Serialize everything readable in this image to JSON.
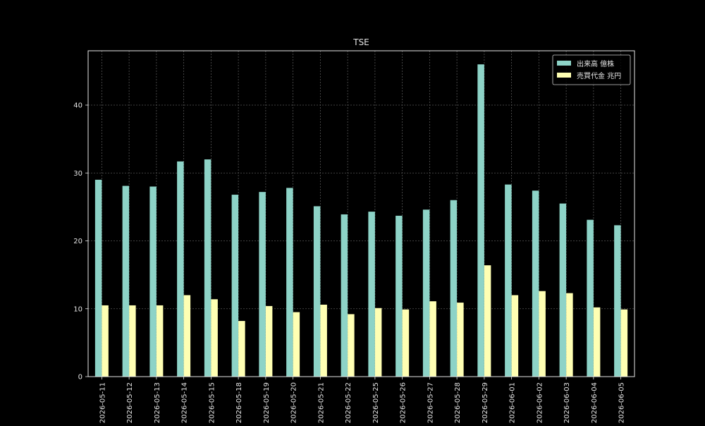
{
  "chart_data": {
    "type": "bar",
    "title": "TSE",
    "xlabel": "",
    "ylabel": "",
    "ylim": [
      0,
      48
    ],
    "yticks": [
      0,
      10,
      20,
      30,
      40
    ],
    "grid": true,
    "legend_position": "top-right",
    "categories": [
      "2026-05-11",
      "2026-05-12",
      "2026-05-13",
      "2026-05-14",
      "2026-05-15",
      "2026-05-18",
      "2026-05-19",
      "2026-05-20",
      "2026-05-21",
      "2026-05-22",
      "2026-05-25",
      "2026-05-26",
      "2026-05-27",
      "2026-05-28",
      "2026-05-29",
      "2026-06-01",
      "2026-06-02",
      "2026-06-03",
      "2026-06-04",
      "2026-06-05"
    ],
    "series": [
      {
        "name": "出来高 億株",
        "color": "#8dd3c7",
        "values": [
          29.0,
          28.1,
          28.0,
          31.7,
          32.0,
          26.8,
          27.2,
          27.8,
          25.1,
          23.9,
          24.3,
          23.7,
          24.6,
          26.0,
          46.0,
          28.3,
          27.4,
          25.5,
          23.1,
          22.3
        ]
      },
      {
        "name": "売買代金 兆円",
        "color": "#ffffb3",
        "values": [
          10.5,
          10.5,
          10.5,
          12.0,
          11.4,
          8.2,
          10.4,
          9.5,
          10.6,
          9.2,
          10.1,
          9.9,
          11.1,
          10.9,
          16.4,
          12.0,
          12.6,
          12.3,
          10.2,
          9.9
        ]
      }
    ]
  }
}
